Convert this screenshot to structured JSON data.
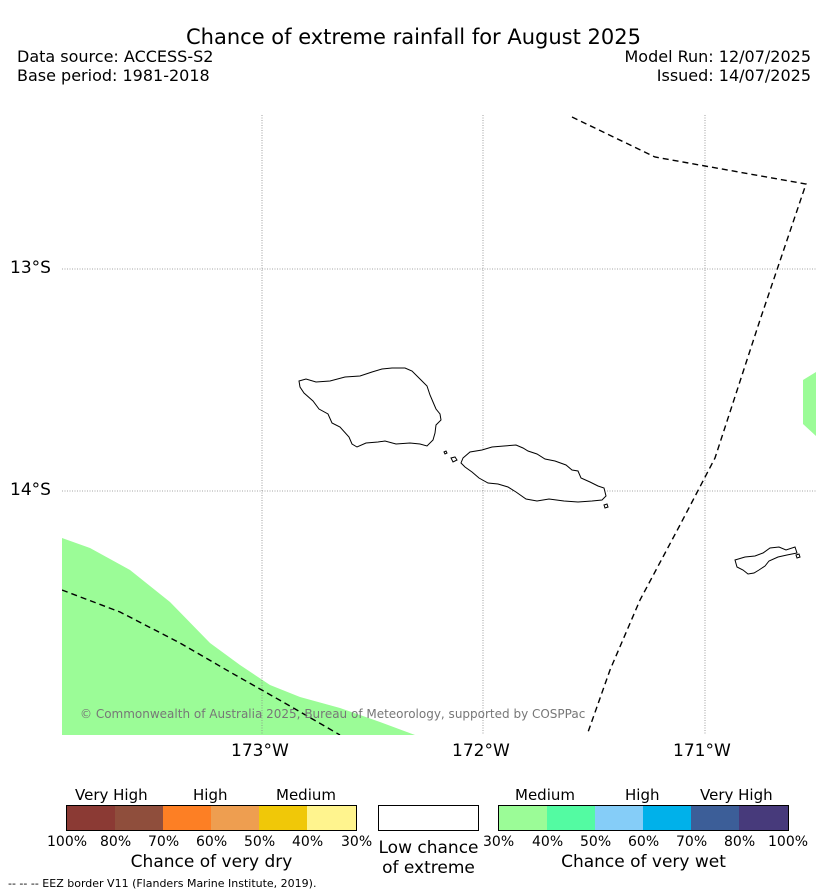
{
  "header": {
    "title": "Chance of extreme rainfall for August 2025",
    "data_source": "Data source: ACCESS-S2",
    "base_period": "Base period: 1981-2018",
    "model_run": "Model Run: 12/07/2025",
    "issued": "Issued: 14/07/2025"
  },
  "map": {
    "lat_labels": [
      "13°S",
      "14°S"
    ],
    "lon_labels": [
      "173°W",
      "172°W",
      "171°W"
    ],
    "copyright": "© Commonwealth of Australia 2025, Bureau of Meteorology, supported by COSPPac",
    "colors": {
      "medium_wet_fill": "#9bfc97",
      "gridline": "#888888",
      "coast": "#000000"
    }
  },
  "legend_dry": {
    "category_labels": [
      "Very High",
      "High",
      "Medium"
    ],
    "colors": [
      "#8b3a34",
      "#8f4e3c",
      "#fd7f24",
      "#ee9e50",
      "#f0c808",
      "#fff48e"
    ],
    "ticks": [
      "100%",
      "80%",
      "70%",
      "60%",
      "50%",
      "40%",
      "30%"
    ],
    "label": "Chance of very dry"
  },
  "legend_low": {
    "color": "#ffffff",
    "label_line1": "Low chance",
    "label_line2": "of extreme"
  },
  "legend_wet": {
    "category_labels": [
      "Medium",
      "High",
      "Very High"
    ],
    "colors": [
      "#9bfc97",
      "#53fba2",
      "#85cdf8",
      "#00b1ea",
      "#3c5e98",
      "#473a7b"
    ],
    "ticks": [
      "30%",
      "40%",
      "50%",
      "60%",
      "70%",
      "80%",
      "100%"
    ],
    "label": "Chance of very wet"
  },
  "footnote": "--  --  -- EEZ border V11 (Flanders Marine Institute, 2019)."
}
